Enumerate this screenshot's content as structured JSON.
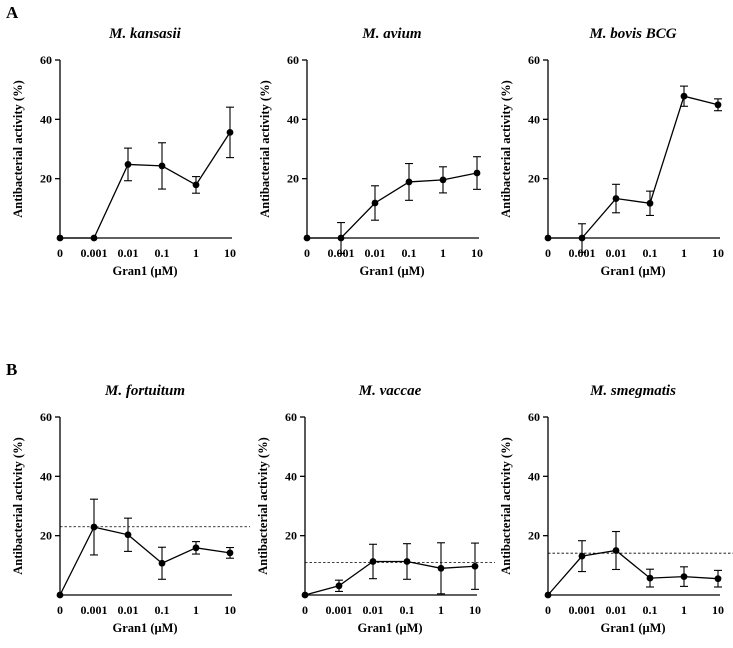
{
  "figure": {
    "panel_labels": [
      "A",
      "B"
    ]
  },
  "chart_data": [
    {
      "type": "line",
      "title": "M. kansasii",
      "xlabel": "Gran1 (μM)",
      "ylabel": "Antibacterial activity (%)",
      "categories": [
        "0",
        "0.001",
        "0.01",
        "0.1",
        "1",
        "10"
      ],
      "values": [
        0,
        0,
        24.8,
        24.3,
        17.9,
        35.6
      ],
      "error": [
        0,
        0,
        5.5,
        7.8,
        2.8,
        8.5
      ],
      "ylim": [
        0,
        60
      ],
      "yticks": [
        20,
        40,
        60
      ],
      "baseline": null
    },
    {
      "type": "line",
      "title": "M. avium",
      "xlabel": "Gran1 (μM)",
      "ylabel": "Antibacterial activity (%)",
      "categories": [
        "0",
        "0.001",
        "0.01",
        "0.1",
        "1",
        "10"
      ],
      "values": [
        0,
        0,
        11.8,
        18.9,
        19.6,
        21.9
      ],
      "error": [
        0,
        5.2,
        5.8,
        6.2,
        4.4,
        5.5
      ],
      "ylim": [
        0,
        60
      ],
      "yticks": [
        20,
        40,
        60
      ],
      "baseline": null
    },
    {
      "type": "line",
      "title": "M. bovis BCG",
      "xlabel": "Gran1 (μM)",
      "ylabel": "Antibacterial activity (%)",
      "categories": [
        "0",
        "0.001",
        "0.01",
        "0.1",
        "1",
        "10"
      ],
      "values": [
        0,
        0,
        13.3,
        11.7,
        47.8,
        44.9
      ],
      "error": [
        0,
        4.8,
        4.8,
        4.1,
        3.4,
        2.0
      ],
      "ylim": [
        0,
        60
      ],
      "yticks": [
        20,
        40,
        60
      ],
      "baseline": null
    },
    {
      "type": "line",
      "title": "M. fortuitum",
      "xlabel": "Gran1 (μM)",
      "ylabel": "Antibacterial activity (%)",
      "categories": [
        "0",
        "0.001",
        "0.01",
        "0.1",
        "1",
        "10"
      ],
      "values": [
        0,
        22.9,
        20.3,
        10.7,
        15.9,
        14.2
      ],
      "error": [
        0,
        9.4,
        5.6,
        5.4,
        2.1,
        1.8
      ],
      "ylim": [
        0,
        60
      ],
      "yticks": [
        20,
        40,
        60
      ],
      "baseline": 23.0
    },
    {
      "type": "line",
      "title": "M. vaccae",
      "xlabel": "Gran1 (μM)",
      "ylabel": "Antibacterial activity (%)",
      "categories": [
        "0",
        "0.001",
        "0.01",
        "0.1",
        "1",
        "10"
      ],
      "values": [
        0,
        3.1,
        11.3,
        11.3,
        9.0,
        9.7
      ],
      "error": [
        0,
        1.9,
        5.8,
        6.0,
        8.6,
        7.8
      ],
      "ylim": [
        0,
        60
      ],
      "yticks": [
        20,
        40,
        60
      ],
      "baseline": 11.0
    },
    {
      "type": "line",
      "title": "M. smegmatis",
      "xlabel": "Gran1 (μM)",
      "ylabel": "Antibacterial activity (%)",
      "categories": [
        "0",
        "0.001",
        "0.01",
        "0.1",
        "1",
        "10"
      ],
      "values": [
        0,
        13.1,
        15.0,
        5.7,
        6.2,
        5.5
      ],
      "error": [
        0,
        5.2,
        6.4,
        3.0,
        3.3,
        2.8
      ],
      "ylim": [
        0,
        60
      ],
      "yticks": [
        20,
        40,
        60
      ],
      "baseline": 14.1
    }
  ]
}
